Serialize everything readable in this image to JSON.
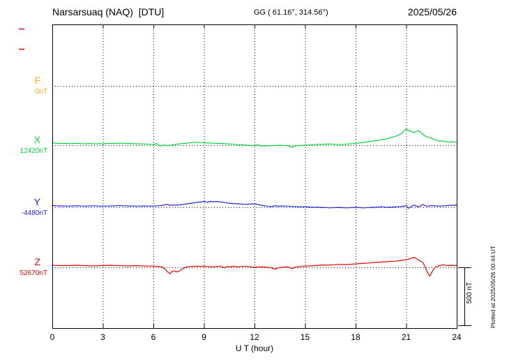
{
  "header": {
    "station": "Narsarsuaq (NAQ)  [DTU]",
    "coords": "GG ( 61.16°, 314.56°)",
    "date": "2025/05/26"
  },
  "scale_bar": {
    "label": "500 nT",
    "nT": 500
  },
  "side_note": "Plotted at 2025/05/26 00:44 UT",
  "colors": {
    "F": "#ffaa00",
    "X": "#00d539",
    "Y": "#2020dd",
    "Z": "#e00000",
    "axis": "#000000",
    "margin_marks": "#e00000"
  },
  "chart_data": {
    "type": "line",
    "xlabel": "U T (hour)",
    "x_range": [
      0,
      24
    ],
    "x_ticks": [
      "0",
      "3",
      "6",
      "9",
      "12",
      "15",
      "18",
      "21",
      "24"
    ],
    "grid": "dotted vertical every 3h, dotted horizontal baseline per component",
    "legend_position": "left margin labels",
    "scale_bar_nT": 500,
    "series": [
      {
        "name": "F",
        "baseline_label": "0nT",
        "baseline_nT": 0,
        "color": "#ffaa00",
        "points": []
      },
      {
        "name": "X",
        "baseline_label": "12420nT",
        "baseline_nT": 12420,
        "color": "#00d539",
        "points": [
          [
            0,
            20
          ],
          [
            0.25,
            16
          ],
          [
            0.5,
            14
          ],
          [
            0.75,
            17
          ],
          [
            1,
            13
          ],
          [
            1.25,
            15
          ],
          [
            1.5,
            16
          ],
          [
            1.75,
            13
          ],
          [
            2,
            12
          ],
          [
            2.25,
            14
          ],
          [
            2.5,
            11
          ],
          [
            2.75,
            13
          ],
          [
            3,
            12
          ],
          [
            3.25,
            15
          ],
          [
            3.5,
            16
          ],
          [
            3.75,
            14
          ],
          [
            4,
            18
          ],
          [
            4.25,
            16
          ],
          [
            4.5,
            15
          ],
          [
            4.75,
            13
          ],
          [
            5,
            12
          ],
          [
            5.25,
            11
          ],
          [
            5.5,
            10
          ],
          [
            5.75,
            8
          ],
          [
            6,
            5
          ],
          [
            6.2,
            14
          ],
          [
            6.4,
            -8
          ],
          [
            6.6,
            2
          ],
          [
            6.8,
            -4
          ],
          [
            7,
            0
          ],
          [
            7.25,
            6
          ],
          [
            7.5,
            10
          ],
          [
            7.75,
            14
          ],
          [
            8,
            18
          ],
          [
            8.25,
            22
          ],
          [
            8.5,
            25
          ],
          [
            8.75,
            22
          ],
          [
            9,
            20
          ],
          [
            9.25,
            19
          ],
          [
            9.5,
            18
          ],
          [
            9.75,
            16
          ],
          [
            10,
            15
          ],
          [
            10.25,
            12
          ],
          [
            10.5,
            10
          ],
          [
            10.75,
            8
          ],
          [
            11,
            5
          ],
          [
            11.25,
            3
          ],
          [
            11.5,
            0
          ],
          [
            11.75,
            -3
          ],
          [
            12,
            -5
          ],
          [
            12.2,
            4
          ],
          [
            12.4,
            -8
          ],
          [
            12.6,
            -6
          ],
          [
            12.8,
            -4
          ],
          [
            13,
            -5
          ],
          [
            13.25,
            -2
          ],
          [
            13.5,
            0
          ],
          [
            13.75,
            -3
          ],
          [
            14,
            -5
          ],
          [
            14.2,
            -18
          ],
          [
            14.4,
            -8
          ],
          [
            14.6,
            -4
          ],
          [
            15,
            0
          ],
          [
            15.25,
            2
          ],
          [
            15.5,
            5
          ],
          [
            15.75,
            7
          ],
          [
            16,
            8
          ],
          [
            16.25,
            9
          ],
          [
            16.5,
            10
          ],
          [
            16.75,
            8
          ],
          [
            17,
            5
          ],
          [
            17.25,
            7
          ],
          [
            17.5,
            10
          ],
          [
            17.75,
            12
          ],
          [
            18,
            15
          ],
          [
            18.25,
            20
          ],
          [
            18.5,
            25
          ],
          [
            18.75,
            30
          ],
          [
            19,
            35
          ],
          [
            19.25,
            40
          ],
          [
            19.5,
            46
          ],
          [
            19.75,
            52
          ],
          [
            20,
            60
          ],
          [
            20.25,
            70
          ],
          [
            20.5,
            82
          ],
          [
            20.75,
            102
          ],
          [
            21,
            140
          ],
          [
            21.1,
            128
          ],
          [
            21.25,
            120
          ],
          [
            21.4,
            112
          ],
          [
            21.5,
            110
          ],
          [
            21.6,
            118
          ],
          [
            21.75,
            124
          ],
          [
            21.9,
            105
          ],
          [
            22,
            92
          ],
          [
            22.1,
            80
          ],
          [
            22.25,
            70
          ],
          [
            22.4,
            64
          ],
          [
            22.5,
            60
          ],
          [
            22.75,
            46
          ],
          [
            23,
            32
          ],
          [
            23.1,
            38
          ],
          [
            23.25,
            34
          ],
          [
            23.4,
            28
          ],
          [
            23.5,
            26
          ],
          [
            23.75,
            30
          ],
          [
            24,
            25
          ]
        ]
      },
      {
        "name": "Y",
        "baseline_label": "-4480nT",
        "baseline_nT": -4480,
        "color": "#2020dd",
        "points": [
          [
            0,
            15
          ],
          [
            0.25,
            13
          ],
          [
            0.5,
            12
          ],
          [
            0.75,
            11
          ],
          [
            1,
            10
          ],
          [
            1.25,
            12
          ],
          [
            1.5,
            13
          ],
          [
            1.75,
            11
          ],
          [
            2,
            10
          ],
          [
            2.25,
            12
          ],
          [
            2.5,
            13
          ],
          [
            2.75,
            11
          ],
          [
            3,
            10
          ],
          [
            3.25,
            11
          ],
          [
            3.5,
            12
          ],
          [
            3.75,
            13
          ],
          [
            4,
            15
          ],
          [
            4.25,
            13
          ],
          [
            4.5,
            12
          ],
          [
            4.75,
            11
          ],
          [
            5,
            10
          ],
          [
            5.25,
            11
          ],
          [
            5.5,
            12
          ],
          [
            5.75,
            11
          ],
          [
            6,
            10
          ],
          [
            6.25,
            13
          ],
          [
            6.5,
            15
          ],
          [
            6.75,
            25
          ],
          [
            7,
            18
          ],
          [
            7.25,
            19
          ],
          [
            7.5,
            20
          ],
          [
            7.75,
            25
          ],
          [
            8,
            30
          ],
          [
            8.25,
            35
          ],
          [
            8.5,
            40
          ],
          [
            8.75,
            45
          ],
          [
            9,
            50
          ],
          [
            9.2,
            44
          ],
          [
            9.4,
            50
          ],
          [
            9.6,
            48
          ],
          [
            9.8,
            50
          ],
          [
            10,
            45
          ],
          [
            10.25,
            40
          ],
          [
            10.5,
            35
          ],
          [
            10.75,
            32
          ],
          [
            11,
            30
          ],
          [
            11.25,
            28
          ],
          [
            11.5,
            25
          ],
          [
            11.75,
            28
          ],
          [
            12,
            30
          ],
          [
            12.25,
            22
          ],
          [
            12.5,
            15
          ],
          [
            12.75,
            10
          ],
          [
            13,
            5
          ],
          [
            13.2,
            14
          ],
          [
            13.4,
            9
          ],
          [
            13.6,
            12
          ],
          [
            13.8,
            10
          ],
          [
            14,
            10
          ],
          [
            14.25,
            8
          ],
          [
            14.5,
            5
          ],
          [
            14.75,
            5
          ],
          [
            15,
            5
          ],
          [
            15.25,
            3
          ],
          [
            15.5,
            0
          ],
          [
            15.75,
            1
          ],
          [
            16,
            0
          ],
          [
            16.25,
            -2
          ],
          [
            16.5,
            -5
          ],
          [
            16.75,
            -2
          ],
          [
            17,
            0
          ],
          [
            17.25,
            -3
          ],
          [
            17.5,
            -5
          ],
          [
            17.75,
            -2
          ],
          [
            18,
            0
          ],
          [
            18.25,
            -3
          ],
          [
            18.5,
            -5
          ],
          [
            18.75,
            -2
          ],
          [
            19,
            0
          ],
          [
            19.25,
            2
          ],
          [
            19.5,
            5
          ],
          [
            19.75,
            2
          ],
          [
            20,
            0
          ],
          [
            20.25,
            3
          ],
          [
            20.5,
            5
          ],
          [
            20.75,
            8
          ],
          [
            21,
            15
          ],
          [
            21.15,
            -8
          ],
          [
            21.3,
            5
          ],
          [
            21.45,
            20
          ],
          [
            21.6,
            10
          ],
          [
            21.75,
            5
          ],
          [
            21.9,
            18
          ],
          [
            22,
            25
          ],
          [
            22.15,
            12
          ],
          [
            22.3,
            10
          ],
          [
            22.5,
            15
          ],
          [
            22.75,
            12
          ],
          [
            23,
            10
          ],
          [
            23.25,
            13
          ],
          [
            23.5,
            15
          ],
          [
            23.75,
            17
          ],
          [
            24,
            20
          ]
        ]
      },
      {
        "name": "Z",
        "baseline_label": "52670nT",
        "baseline_nT": 52670,
        "color": "#e00000",
        "points": [
          [
            0,
            18
          ],
          [
            0.25,
            16
          ],
          [
            0.5,
            15
          ],
          [
            0.75,
            16
          ],
          [
            1,
            15
          ],
          [
            1.25,
            17
          ],
          [
            1.5,
            18
          ],
          [
            1.75,
            16
          ],
          [
            2,
            15
          ],
          [
            2.25,
            13
          ],
          [
            2.5,
            12
          ],
          [
            2.75,
            14
          ],
          [
            3,
            15
          ],
          [
            3.25,
            17
          ],
          [
            3.5,
            18
          ],
          [
            3.75,
            16
          ],
          [
            4,
            15
          ],
          [
            4.25,
            13
          ],
          [
            4.5,
            12
          ],
          [
            4.75,
            14
          ],
          [
            5,
            15
          ],
          [
            5.25,
            13
          ],
          [
            5.5,
            12
          ],
          [
            5.75,
            11
          ],
          [
            6,
            10
          ],
          [
            6.25,
            8
          ],
          [
            6.5,
            5
          ],
          [
            6.7,
            -15
          ],
          [
            6.85,
            -40
          ],
          [
            7,
            -55
          ],
          [
            7.1,
            -35
          ],
          [
            7.25,
            -30
          ],
          [
            7.4,
            -38
          ],
          [
            7.5,
            -35
          ],
          [
            7.65,
            -20
          ],
          [
            7.75,
            -10
          ],
          [
            8,
            5
          ],
          [
            8.25,
            8
          ],
          [
            8.5,
            10
          ],
          [
            8.75,
            9
          ],
          [
            9,
            10
          ],
          [
            9.25,
            7
          ],
          [
            9.5,
            5
          ],
          [
            9.75,
            8
          ],
          [
            10,
            10
          ],
          [
            10.2,
            -5
          ],
          [
            10.4,
            8
          ],
          [
            10.6,
            6
          ],
          [
            10.8,
            9
          ],
          [
            11,
            5
          ],
          [
            11.25,
            8
          ],
          [
            11.5,
            10
          ],
          [
            11.75,
            5
          ],
          [
            12,
            0
          ],
          [
            12.25,
            3
          ],
          [
            12.5,
            5
          ],
          [
            12.75,
            0
          ],
          [
            13,
            -5
          ],
          [
            13.2,
            -15
          ],
          [
            13.4,
            -5
          ],
          [
            13.6,
            0
          ],
          [
            13.8,
            3
          ],
          [
            14,
            5
          ],
          [
            14.2,
            -10
          ],
          [
            14.4,
            0
          ],
          [
            14.6,
            5
          ],
          [
            14.8,
            8
          ],
          [
            15,
            10
          ],
          [
            15.25,
            12
          ],
          [
            15.5,
            15
          ],
          [
            15.75,
            17
          ],
          [
            16,
            20
          ],
          [
            16.25,
            19
          ],
          [
            16.5,
            20
          ],
          [
            16.75,
            22
          ],
          [
            17,
            25
          ],
          [
            17.25,
            24
          ],
          [
            17.5,
            25
          ],
          [
            17.75,
            27
          ],
          [
            18,
            30
          ],
          [
            18.25,
            32
          ],
          [
            18.5,
            35
          ],
          [
            18.75,
            37
          ],
          [
            19,
            40
          ],
          [
            19.25,
            42
          ],
          [
            19.5,
            45
          ],
          [
            19.75,
            47
          ],
          [
            20,
            50
          ],
          [
            20.25,
            52
          ],
          [
            20.5,
            55
          ],
          [
            20.75,
            60
          ],
          [
            21,
            65
          ],
          [
            21.2,
            72
          ],
          [
            21.4,
            82
          ],
          [
            21.5,
            85
          ],
          [
            21.6,
            75
          ],
          [
            21.75,
            60
          ],
          [
            21.9,
            50
          ],
          [
            22,
            40
          ],
          [
            22.1,
            10
          ],
          [
            22.25,
            -40
          ],
          [
            22.4,
            -75
          ],
          [
            22.5,
            -50
          ],
          [
            22.6,
            -20
          ],
          [
            22.75,
            5
          ],
          [
            23,
            15
          ],
          [
            23.2,
            22
          ],
          [
            23.4,
            16
          ],
          [
            23.5,
            15
          ],
          [
            23.75,
            18
          ],
          [
            24,
            15
          ]
        ]
      }
    ]
  }
}
